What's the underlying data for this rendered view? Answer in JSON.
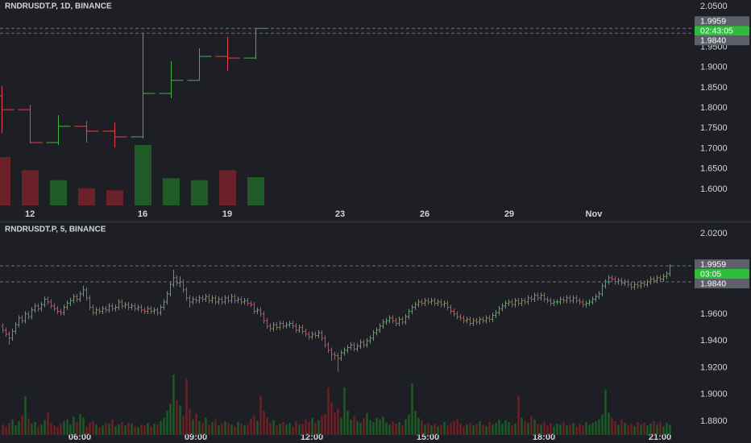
{
  "chart_data": [
    {
      "type": "ohlc",
      "title": "RNDRUSDT.P, 1D, BINANCE",
      "up_color": "#43b649",
      "down_color": "#e2434f",
      "up_volume_color": "#1f5a27",
      "down_volume_color": "#6a2129",
      "grid": false,
      "open": [
        1.83,
        1.796,
        1.715,
        1.755,
        1.743,
        1.729,
        1.836,
        1.868,
        1.927,
        1.923
      ],
      "high": [
        1.854,
        1.808,
        1.782,
        1.768,
        1.764,
        1.985,
        1.915,
        1.947,
        1.975,
        1.996
      ],
      "low": [
        1.739,
        1.713,
        1.709,
        1.715,
        1.703,
        1.725,
        1.824,
        1.868,
        1.891,
        1.921
      ],
      "close": [
        1.796,
        1.715,
        1.755,
        1.743,
        1.729,
        1.836,
        1.868,
        1.927,
        1.923,
        1.9959
      ],
      "volume": [
        48,
        35,
        25,
        17,
        15,
        60,
        27,
        25,
        35,
        28
      ],
      "xlim": [
        -0.06,
        24.46
      ],
      "xticks": [
        {
          "value": 1,
          "label": "12"
        },
        {
          "value": 5,
          "label": "16"
        },
        {
          "value": 8,
          "label": "19"
        },
        {
          "value": 12,
          "label": "23"
        },
        {
          "value": 15,
          "label": "26"
        },
        {
          "value": 18,
          "label": "29"
        },
        {
          "value": 21,
          "label": "Nov"
        }
      ],
      "ylim": [
        1.5603,
        2.0659
      ],
      "yticks": [
        {
          "value": 2.05,
          "label": "2.0500"
        },
        {
          "value": 1.95,
          "label": "1.9500"
        },
        {
          "value": 1.9,
          "label": "1.9000"
        },
        {
          "value": 1.85,
          "label": "1.8500"
        },
        {
          "value": 1.8,
          "label": "1.8000"
        },
        {
          "value": 1.75,
          "label": "1.7500"
        },
        {
          "value": 1.7,
          "label": "1.7000"
        },
        {
          "value": 1.65,
          "label": "1.6500"
        },
        {
          "value": 1.6,
          "label": "1.6000"
        }
      ],
      "last_price": {
        "value": 1.9959,
        "label": "1.9959"
      },
      "countdown": "02:43:05",
      "ref_price": {
        "value": 1.984,
        "label": "1.9840"
      },
      "tag_color": "#5d606b",
      "countdown_color": "#2ebd3b"
    },
    {
      "type": "ohlc",
      "title": "RNDRUSDT.P, 5, BINANCE",
      "up_color": "#43b649",
      "down_color": "#e2434f",
      "up_volume_color": "#1f5a27",
      "down_volume_color": "#6a2129",
      "grid": false,
      "open": [
        1.951,
        1.948,
        1.945,
        1.942,
        1.947,
        1.952,
        1.957,
        1.955,
        1.96,
        1.958,
        1.963,
        1.966,
        1.964,
        1.967,
        1.971,
        1.969,
        1.966,
        1.964,
        1.962,
        1.961,
        1.965,
        1.968,
        1.97,
        1.973,
        1.971,
        1.975,
        1.978,
        1.972,
        1.965,
        1.961,
        1.963,
        1.962,
        1.964,
        1.963,
        1.966,
        1.964,
        1.965,
        1.969,
        1.966,
        1.967,
        1.965,
        1.966,
        1.964,
        1.965,
        1.963,
        1.962,
        1.964,
        1.962,
        1.963,
        1.961,
        1.965,
        1.969,
        1.975,
        1.982,
        1.987,
        1.983,
        1.984,
        1.978,
        1.972,
        1.969,
        1.971,
        1.97,
        1.972,
        1.971,
        1.973,
        1.97,
        1.972,
        1.969,
        1.971,
        1.969,
        1.972,
        1.97,
        1.973,
        1.97,
        1.971,
        1.969,
        1.97,
        1.968,
        1.967,
        1.962,
        1.963,
        1.96,
        1.955,
        1.951,
        1.949,
        1.952,
        1.95,
        1.953,
        1.951,
        1.952,
        1.953,
        1.951,
        1.948,
        1.95,
        1.947,
        1.945,
        1.943,
        1.945,
        1.944,
        1.946,
        1.942,
        1.937,
        1.933,
        1.93,
        1.929,
        1.927,
        1.931,
        1.933,
        1.935,
        1.937,
        1.934,
        1.936,
        1.939,
        1.937,
        1.94,
        1.942,
        1.946,
        1.948,
        1.951,
        1.954,
        1.955,
        1.957,
        1.955,
        1.953,
        1.956,
        1.954,
        1.958,
        1.962,
        1.965,
        1.967,
        1.969,
        1.968,
        1.97,
        1.969,
        1.97,
        1.968,
        1.969,
        1.967,
        1.968,
        1.965,
        1.962,
        1.96,
        1.958,
        1.957,
        1.955,
        1.956,
        1.953,
        1.955,
        1.954,
        1.956,
        1.955,
        1.957,
        1.956,
        1.959,
        1.961,
        1.964,
        1.966,
        1.968,
        1.969,
        1.967,
        1.97,
        1.968,
        1.97,
        1.969,
        1.972,
        1.971,
        1.974,
        1.972,
        1.974,
        1.971,
        1.97,
        1.968,
        1.969,
        1.969,
        1.971,
        1.97,
        1.972,
        1.97,
        1.972,
        1.97,
        1.969,
        1.967,
        1.968,
        1.969,
        1.971,
        1.973,
        1.975,
        1.981,
        1.984,
        1.987,
        1.986,
        1.984,
        1.985,
        1.983,
        1.984,
        1.982,
        1.98,
        1.982,
        1.981,
        1.983,
        1.982,
        1.984,
        1.986,
        1.985,
        1.987,
        1.986,
        1.988,
        1.99
      ],
      "high": [
        1.953,
        1.95,
        1.947,
        1.949,
        1.954,
        1.959,
        1.959,
        1.962,
        1.962,
        1.965,
        1.968,
        1.968,
        1.969,
        1.973,
        1.973,
        1.971,
        1.968,
        1.966,
        1.964,
        1.967,
        1.97,
        1.972,
        1.975,
        1.975,
        1.977,
        1.981,
        1.98,
        1.974,
        1.967,
        1.965,
        1.965,
        1.966,
        1.966,
        1.968,
        1.968,
        1.967,
        1.971,
        1.971,
        1.969,
        1.969,
        1.968,
        1.968,
        1.967,
        1.967,
        1.965,
        1.966,
        1.966,
        1.965,
        1.965,
        1.967,
        1.971,
        1.977,
        1.984,
        1.993,
        1.989,
        1.988,
        1.986,
        1.98,
        1.974,
        1.973,
        1.973,
        1.974,
        1.974,
        1.975,
        1.975,
        1.974,
        1.974,
        1.973,
        1.973,
        1.974,
        1.974,
        1.975,
        1.975,
        1.973,
        1.973,
        1.972,
        1.972,
        1.97,
        1.969,
        1.965,
        1.965,
        1.962,
        1.957,
        1.953,
        1.954,
        1.954,
        1.955,
        1.955,
        1.954,
        1.955,
        1.955,
        1.953,
        1.952,
        1.952,
        1.949,
        1.947,
        1.947,
        1.947,
        1.948,
        1.948,
        1.944,
        1.939,
        1.935,
        1.932,
        1.931,
        1.933,
        1.935,
        1.937,
        1.939,
        1.939,
        1.938,
        1.941,
        1.941,
        1.942,
        1.944,
        1.948,
        1.95,
        1.953,
        1.956,
        1.957,
        1.959,
        1.959,
        1.957,
        1.958,
        1.958,
        1.96,
        1.964,
        1.967,
        1.969,
        1.971,
        1.971,
        1.972,
        1.972,
        1.972,
        1.972,
        1.971,
        1.971,
        1.97,
        1.97,
        1.967,
        1.964,
        1.962,
        1.96,
        1.959,
        1.958,
        1.958,
        1.957,
        1.957,
        1.958,
        1.958,
        1.959,
        1.959,
        1.961,
        1.963,
        1.966,
        1.968,
        1.97,
        1.971,
        1.971,
        1.972,
        1.972,
        1.972,
        1.972,
        1.974,
        1.974,
        1.976,
        1.976,
        1.976,
        1.976,
        1.973,
        1.972,
        1.971,
        1.971,
        1.973,
        1.973,
        1.974,
        1.974,
        1.974,
        1.974,
        1.972,
        1.971,
        1.97,
        1.971,
        1.973,
        1.975,
        1.977,
        1.983,
        1.986,
        1.989,
        1.989,
        1.988,
        1.987,
        1.987,
        1.986,
        1.986,
        1.984,
        1.984,
        1.984,
        1.985,
        1.985,
        1.986,
        1.988,
        1.988,
        1.989,
        1.989,
        1.99,
        1.992,
        1.997
      ],
      "low": [
        1.946,
        1.943,
        1.937,
        1.94,
        1.945,
        1.95,
        1.953,
        1.953,
        1.956,
        1.956,
        1.961,
        1.962,
        1.962,
        1.965,
        1.967,
        1.964,
        1.962,
        1.96,
        1.959,
        1.959,
        1.963,
        1.966,
        1.968,
        1.969,
        1.969,
        1.973,
        1.97,
        1.963,
        1.959,
        1.959,
        1.96,
        1.96,
        1.961,
        1.961,
        1.962,
        1.962,
        1.963,
        1.964,
        1.964,
        1.963,
        1.963,
        1.962,
        1.962,
        1.961,
        1.96,
        1.96,
        1.96,
        1.96,
        1.959,
        1.959,
        1.963,
        1.967,
        1.973,
        1.98,
        1.981,
        1.98,
        1.976,
        1.97,
        1.965,
        1.967,
        1.968,
        1.968,
        1.969,
        1.969,
        1.968,
        1.968,
        1.967,
        1.967,
        1.967,
        1.967,
        1.968,
        1.968,
        1.968,
        1.968,
        1.967,
        1.967,
        1.966,
        1.965,
        1.96,
        1.96,
        1.958,
        1.953,
        1.949,
        1.947,
        1.947,
        1.948,
        1.948,
        1.949,
        1.949,
        1.95,
        1.949,
        1.946,
        1.946,
        1.945,
        1.943,
        1.941,
        1.941,
        1.942,
        1.942,
        1.94,
        1.935,
        1.931,
        1.925,
        1.926,
        1.917,
        1.925,
        1.929,
        1.931,
        1.933,
        1.932,
        1.932,
        1.934,
        1.935,
        1.935,
        1.938,
        1.94,
        1.944,
        1.946,
        1.949,
        1.952,
        1.953,
        1.953,
        1.951,
        1.951,
        1.952,
        1.952,
        1.956,
        1.96,
        1.963,
        1.965,
        1.966,
        1.966,
        1.967,
        1.967,
        1.966,
        1.966,
        1.965,
        1.965,
        1.963,
        1.96,
        1.958,
        1.956,
        1.955,
        1.953,
        1.953,
        1.951,
        1.951,
        1.952,
        1.952,
        1.953,
        1.953,
        1.954,
        1.954,
        1.957,
        1.959,
        1.962,
        1.964,
        1.966,
        1.965,
        1.965,
        1.966,
        1.966,
        1.967,
        1.967,
        1.969,
        1.969,
        1.97,
        1.97,
        1.969,
        1.968,
        1.966,
        1.966,
        1.967,
        1.967,
        1.968,
        1.968,
        1.968,
        1.968,
        1.968,
        1.967,
        1.965,
        1.965,
        1.966,
        1.967,
        1.969,
        1.971,
        1.973,
        1.979,
        1.982,
        1.984,
        1.982,
        1.982,
        1.981,
        1.981,
        1.98,
        1.978,
        1.978,
        1.979,
        1.979,
        1.98,
        1.98,
        1.982,
        1.983,
        1.983,
        1.984,
        1.984,
        1.986,
        1.988
      ],
      "close": [
        1.948,
        1.945,
        1.942,
        1.947,
        1.952,
        1.957,
        1.955,
        1.96,
        1.958,
        1.963,
        1.966,
        1.964,
        1.967,
        1.971,
        1.969,
        1.966,
        1.964,
        1.962,
        1.961,
        1.965,
        1.968,
        1.97,
        1.973,
        1.971,
        1.975,
        1.978,
        1.972,
        1.965,
        1.961,
        1.963,
        1.962,
        1.964,
        1.963,
        1.966,
        1.964,
        1.965,
        1.969,
        1.966,
        1.967,
        1.965,
        1.966,
        1.964,
        1.965,
        1.963,
        1.962,
        1.964,
        1.962,
        1.963,
        1.961,
        1.965,
        1.969,
        1.975,
        1.982,
        1.987,
        1.983,
        1.984,
        1.978,
        1.972,
        1.969,
        1.971,
        1.97,
        1.972,
        1.971,
        1.973,
        1.97,
        1.972,
        1.969,
        1.971,
        1.969,
        1.972,
        1.97,
        1.973,
        1.97,
        1.971,
        1.969,
        1.97,
        1.968,
        1.967,
        1.962,
        1.963,
        1.96,
        1.955,
        1.951,
        1.949,
        1.952,
        1.95,
        1.953,
        1.951,
        1.952,
        1.953,
        1.951,
        1.948,
        1.95,
        1.947,
        1.945,
        1.943,
        1.945,
        1.944,
        1.946,
        1.942,
        1.937,
        1.933,
        1.93,
        1.929,
        1.927,
        1.931,
        1.933,
        1.935,
        1.937,
        1.934,
        1.936,
        1.939,
        1.937,
        1.94,
        1.942,
        1.946,
        1.948,
        1.951,
        1.954,
        1.955,
        1.957,
        1.955,
        1.953,
        1.956,
        1.954,
        1.958,
        1.962,
        1.965,
        1.967,
        1.969,
        1.968,
        1.97,
        1.969,
        1.97,
        1.968,
        1.969,
        1.967,
        1.968,
        1.965,
        1.962,
        1.96,
        1.958,
        1.957,
        1.955,
        1.956,
        1.953,
        1.955,
        1.954,
        1.956,
        1.955,
        1.957,
        1.956,
        1.959,
        1.961,
        1.964,
        1.966,
        1.968,
        1.969,
        1.967,
        1.97,
        1.968,
        1.97,
        1.969,
        1.972,
        1.971,
        1.974,
        1.972,
        1.974,
        1.971,
        1.97,
        1.968,
        1.969,
        1.969,
        1.971,
        1.97,
        1.972,
        1.97,
        1.972,
        1.97,
        1.969,
        1.967,
        1.968,
        1.969,
        1.971,
        1.973,
        1.975,
        1.981,
        1.984,
        1.987,
        1.986,
        1.984,
        1.985,
        1.983,
        1.984,
        1.982,
        1.98,
        1.982,
        1.981,
        1.983,
        1.982,
        1.984,
        1.986,
        1.985,
        1.987,
        1.986,
        1.988,
        1.99,
        1.9959
      ],
      "volume": [
        12,
        9,
        14,
        18,
        11,
        16,
        22,
        45,
        19,
        13,
        15,
        10,
        12,
        17,
        26,
        14,
        11,
        9,
        13,
        16,
        18,
        12,
        21,
        15,
        24,
        20,
        10,
        14,
        16,
        12,
        9,
        11,
        14,
        13,
        18,
        10,
        12,
        15,
        11,
        14,
        13,
        10,
        9,
        12,
        11,
        14,
        10,
        13,
        12,
        16,
        20,
        28,
        36,
        70,
        40,
        34,
        22,
        65,
        30,
        18,
        25,
        16,
        14,
        20,
        12,
        15,
        18,
        11,
        13,
        16,
        14,
        12,
        10,
        15,
        13,
        11,
        12,
        19,
        22,
        16,
        45,
        28,
        20,
        14,
        17,
        11,
        13,
        15,
        12,
        14,
        10,
        16,
        12,
        13,
        18,
        15,
        20,
        14,
        17,
        22,
        24,
        55,
        38,
        26,
        30,
        20,
        55,
        28,
        18,
        22,
        16,
        14,
        19,
        25,
        17,
        15,
        20,
        18,
        21,
        14,
        12,
        16,
        13,
        15,
        11,
        18,
        24,
        60,
        28,
        20,
        17,
        12,
        14,
        11,
        13,
        10,
        12,
        15,
        11,
        14,
        16,
        18,
        13,
        10,
        12,
        14,
        11,
        13,
        16,
        12,
        10,
        15,
        12,
        14,
        18,
        13,
        17,
        15,
        11,
        13,
        45,
        20,
        16,
        14,
        22,
        18,
        13,
        12,
        15,
        11,
        14,
        10,
        13,
        12,
        15,
        11,
        12,
        14,
        10,
        13,
        11,
        15,
        12,
        14,
        16,
        18,
        24,
        52,
        26,
        20,
        16,
        12,
        18,
        14,
        11,
        13,
        10,
        15,
        12,
        14,
        11,
        13,
        16,
        12,
        15,
        10,
        14,
        12
      ],
      "xlim": [
        -0.75,
        213.75
      ],
      "xticks": [
        {
          "value": 24,
          "label": "06:00"
        },
        {
          "value": 60,
          "label": "09:00"
        },
        {
          "value": 96,
          "label": "12:00"
        },
        {
          "value": 132,
          "label": "15:00"
        },
        {
          "value": 168,
          "label": "18:00"
        },
        {
          "value": 204,
          "label": "21:00"
        }
      ],
      "ylim": [
        1.8698,
        2.0278
      ],
      "yticks": [
        {
          "value": 2.02,
          "label": "2.0200"
        },
        {
          "value": 1.96,
          "label": "1.9600"
        },
        {
          "value": 1.94,
          "label": "1.9400"
        },
        {
          "value": 1.92,
          "label": "1.9200"
        },
        {
          "value": 1.9,
          "label": "1.9000"
        },
        {
          "value": 1.88,
          "label": "1.8800"
        }
      ],
      "last_price": {
        "value": 1.9959,
        "label": "1.9959"
      },
      "countdown": "03:05",
      "ref_price": {
        "value": 1.984,
        "label": "1.9840"
      },
      "tag_color": "#5d606b",
      "countdown_color": "#2ebd3b"
    }
  ]
}
